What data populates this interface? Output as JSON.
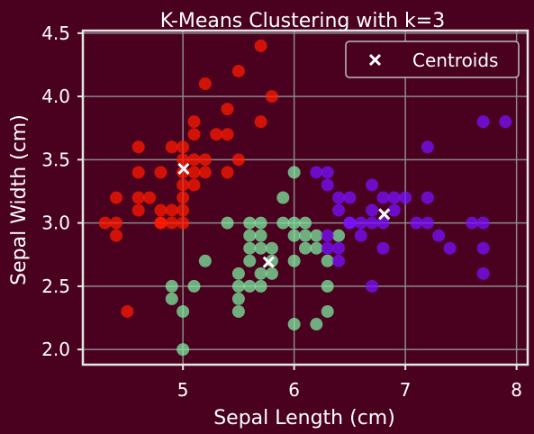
{
  "colors": {
    "background": "#4a001f",
    "axes": "#e6e6e6",
    "grid": "#8a8a8a",
    "cluster_red": "#ff1a00",
    "cluster_green": "#7fe8a0",
    "cluster_purple": "#7a10ff",
    "centroid": "#ffffff"
  },
  "chart_data": {
    "type": "scatter",
    "title": "K-Means Clustering with k=3",
    "xlabel": "Sepal Length (cm)",
    "ylabel": "Sepal Width (cm)",
    "xlim": [
      4.1,
      8.1
    ],
    "ylim": [
      1.88,
      4.52
    ],
    "xticks": [
      5,
      6,
      7,
      8
    ],
    "xtick_labels": [
      "5",
      "6",
      "7",
      "8"
    ],
    "yticks": [
      2.0,
      2.5,
      3.0,
      3.5,
      4.0,
      4.5
    ],
    "ytick_labels": [
      "2.0",
      "2.5",
      "3.0",
      "3.5",
      "4.0",
      "4.5"
    ],
    "grid": true,
    "legend": {
      "position": "top-right",
      "entries": [
        "Centroids"
      ]
    },
    "clusters": [
      {
        "color": "#ff1a00",
        "points": [
          [
            4.3,
            3.0
          ],
          [
            4.4,
            3.2
          ],
          [
            4.4,
            3.0
          ],
          [
            4.4,
            2.9
          ],
          [
            4.5,
            2.3
          ],
          [
            4.6,
            3.6
          ],
          [
            4.6,
            3.4
          ],
          [
            4.6,
            3.2
          ],
          [
            4.6,
            3.1
          ],
          [
            4.7,
            3.2
          ],
          [
            4.8,
            3.4
          ],
          [
            4.8,
            3.1
          ],
          [
            4.8,
            3.0
          ],
          [
            4.9,
            3.6
          ],
          [
            4.9,
            3.1
          ],
          [
            4.9,
            3.0
          ],
          [
            5.0,
            3.6
          ],
          [
            5.0,
            3.5
          ],
          [
            5.0,
            3.4
          ],
          [
            5.0,
            3.3
          ],
          [
            5.0,
            3.2
          ],
          [
            5.0,
            3.0
          ],
          [
            5.1,
            3.8
          ],
          [
            5.1,
            3.7
          ],
          [
            5.1,
            3.5
          ],
          [
            5.1,
            3.4
          ],
          [
            5.1,
            3.3
          ],
          [
            5.2,
            4.1
          ],
          [
            5.2,
            3.5
          ],
          [
            5.2,
            3.4
          ],
          [
            5.3,
            3.7
          ],
          [
            5.4,
            3.9
          ],
          [
            5.4,
            3.7
          ],
          [
            5.4,
            3.4
          ],
          [
            5.5,
            4.2
          ],
          [
            5.5,
            3.5
          ],
          [
            5.7,
            4.4
          ],
          [
            5.7,
            3.8
          ],
          [
            5.8,
            4.0
          ],
          [
            5.0,
            3.1
          ],
          [
            4.8,
            3.0
          ]
        ]
      },
      {
        "color": "#7fe8a0",
        "points": [
          [
            4.9,
            2.5
          ],
          [
            4.9,
            2.4
          ],
          [
            5.0,
            2.3
          ],
          [
            5.0,
            2.0
          ],
          [
            5.1,
            2.5
          ],
          [
            5.2,
            2.7
          ],
          [
            5.4,
            3.0
          ],
          [
            5.5,
            2.6
          ],
          [
            5.5,
            2.5
          ],
          [
            5.5,
            2.4
          ],
          [
            5.5,
            2.3
          ],
          [
            5.6,
            3.0
          ],
          [
            5.6,
            2.9
          ],
          [
            5.6,
            2.8
          ],
          [
            5.6,
            2.7
          ],
          [
            5.6,
            2.5
          ],
          [
            5.7,
            3.0
          ],
          [
            5.7,
            2.9
          ],
          [
            5.7,
            2.8
          ],
          [
            5.7,
            2.6
          ],
          [
            5.7,
            2.5
          ],
          [
            5.8,
            2.8
          ],
          [
            5.8,
            2.7
          ],
          [
            5.8,
            2.6
          ],
          [
            5.9,
            3.2
          ],
          [
            5.9,
            3.0
          ],
          [
            6.0,
            3.4
          ],
          [
            6.0,
            3.0
          ],
          [
            6.0,
            2.9
          ],
          [
            6.0,
            2.7
          ],
          [
            6.0,
            2.2
          ],
          [
            6.1,
            3.0
          ],
          [
            6.1,
            2.9
          ],
          [
            6.1,
            2.8
          ],
          [
            6.2,
            2.9
          ],
          [
            6.2,
            2.8
          ],
          [
            6.2,
            2.2
          ],
          [
            6.3,
            2.5
          ],
          [
            6.3,
            2.3
          ],
          [
            6.4,
            2.9
          ],
          [
            6.3,
            2.7
          ]
        ]
      },
      {
        "color": "#7a10ff",
        "points": [
          [
            6.2,
            3.4
          ],
          [
            6.3,
            3.4
          ],
          [
            6.3,
            3.3
          ],
          [
            6.3,
            2.9
          ],
          [
            6.3,
            2.8
          ],
          [
            6.4,
            3.2
          ],
          [
            6.4,
            3.1
          ],
          [
            6.4,
            2.8
          ],
          [
            6.4,
            2.7
          ],
          [
            6.5,
            3.2
          ],
          [
            6.5,
            3.0
          ],
          [
            6.6,
            3.0
          ],
          [
            6.6,
            2.9
          ],
          [
            6.7,
            3.3
          ],
          [
            6.7,
            3.1
          ],
          [
            6.7,
            3.0
          ],
          [
            6.7,
            2.5
          ],
          [
            6.8,
            3.2
          ],
          [
            6.8,
            3.0
          ],
          [
            6.8,
            2.8
          ],
          [
            6.9,
            3.2
          ],
          [
            6.9,
            3.1
          ],
          [
            7.0,
            3.2
          ],
          [
            7.1,
            3.0
          ],
          [
            7.2,
            3.6
          ],
          [
            7.2,
            3.2
          ],
          [
            7.2,
            3.0
          ],
          [
            7.3,
            2.9
          ],
          [
            7.4,
            2.8
          ],
          [
            7.6,
            3.0
          ],
          [
            7.7,
            3.8
          ],
          [
            7.7,
            3.0
          ],
          [
            7.7,
            2.8
          ],
          [
            7.7,
            2.6
          ],
          [
            7.9,
            3.8
          ],
          [
            6.5,
            3.0
          ]
        ]
      }
    ],
    "centroids": [
      [
        5.006,
        3.428
      ],
      [
        5.77,
        2.69
      ],
      [
        6.81,
        3.07
      ]
    ]
  }
}
